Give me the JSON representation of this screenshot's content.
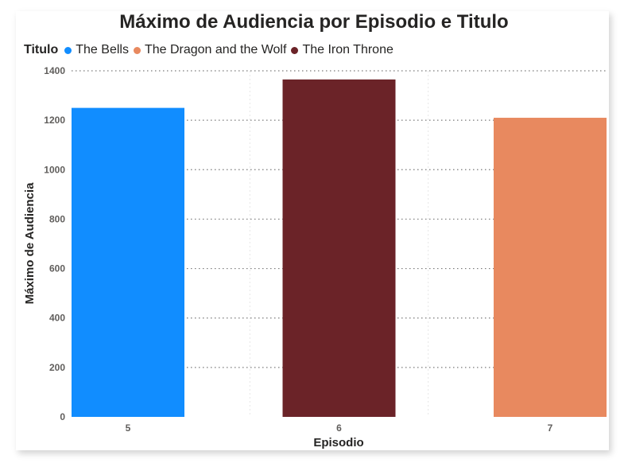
{
  "chart_data": {
    "type": "bar",
    "title": "Máximo de Audiencia por Episodio e Titulo",
    "xlabel": "Episodio",
    "ylabel": "Máximo de Audiencia",
    "legend_title": "Titulo",
    "legend_position": "top-left",
    "grid": true,
    "ylim": [
      0,
      1400
    ],
    "yticks": [
      0,
      200,
      400,
      600,
      800,
      1000,
      1200,
      1400
    ],
    "legend": [
      {
        "name": "The Bells",
        "color": "#118dff"
      },
      {
        "name": "The Dragon and the Wolf",
        "color": "#e8895f"
      },
      {
        "name": "The Iron Throne",
        "color": "#6b2328"
      }
    ],
    "bars": [
      {
        "category": "5",
        "title": "The Bells",
        "value": 1250,
        "color": "#118dff"
      },
      {
        "category": "6",
        "title": "The Iron Throne",
        "value": 1365,
        "color": "#6b2328"
      },
      {
        "category": "7",
        "title": "The Dragon and the Wolf",
        "value": 1210,
        "color": "#e8895f"
      }
    ]
  }
}
